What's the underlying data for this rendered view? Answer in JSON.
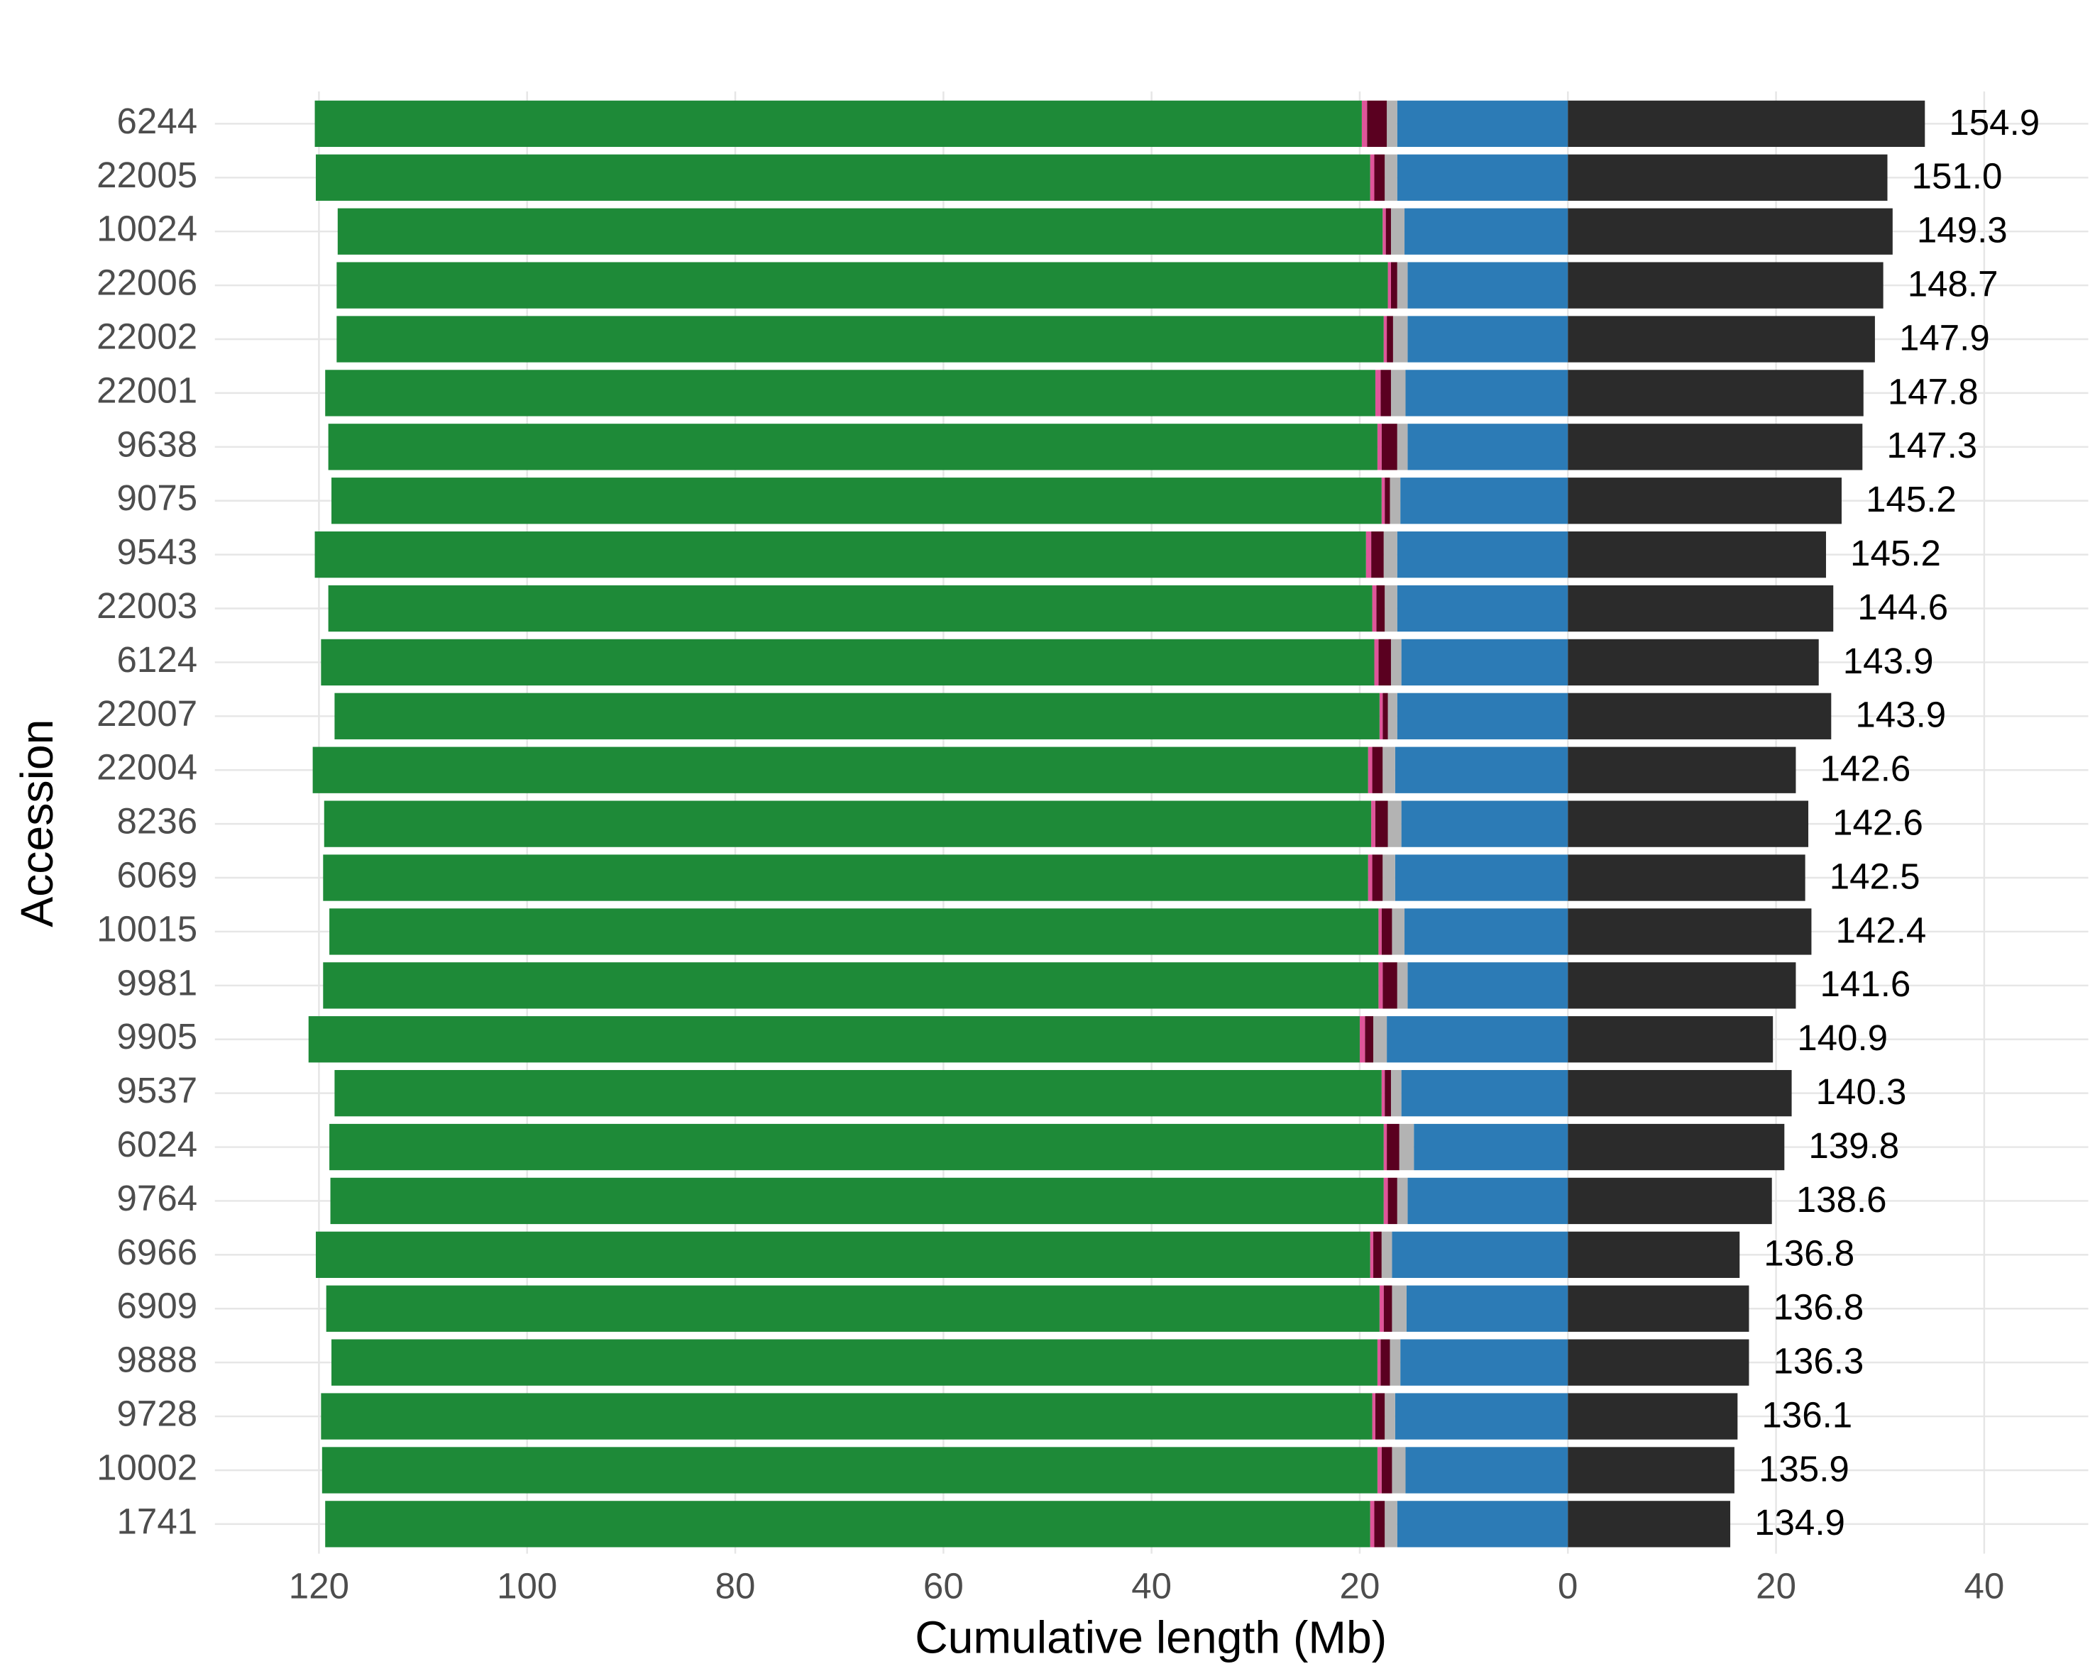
{
  "chart_data": {
    "type": "diverging-stacked-bar",
    "xlabel": "Cumulative length (Mb)",
    "ylabel": "Accession",
    "categories": [
      "6244",
      "22005",
      "10024",
      "22006",
      "22002",
      "22001",
      "9638",
      "9075",
      "9543",
      "22003",
      "6124",
      "22007",
      "22004",
      "8236",
      "6069",
      "10015",
      "9981",
      "9905",
      "9537",
      "6024",
      "9764",
      "6966",
      "6909",
      "9888",
      "9728",
      "10002",
      "1741"
    ],
    "xlim": [
      -130,
      50
    ],
    "xticks": [
      {
        "value": -120,
        "label": "120"
      },
      {
        "value": -100,
        "label": "100"
      },
      {
        "value": -80,
        "label": "80"
      },
      {
        "value": -60,
        "label": "60"
      },
      {
        "value": -40,
        "label": "40"
      },
      {
        "value": -20,
        "label": "20"
      },
      0,
      20,
      40
    ],
    "grid": true,
    "series": [
      {
        "color": "#2c7bb6",
        "values": [
          -16.4,
          -16.4,
          -15.7,
          -15.4,
          -15.4,
          -15.6,
          -15.4,
          -16.1,
          -16.4,
          -16.4,
          -16.0,
          -16.4,
          -16.6,
          -16.0,
          -16.6,
          -15.7,
          -15.4,
          -17.4,
          -16.0,
          -14.8,
          -15.4,
          -16.9,
          -15.5,
          -16.1,
          -16.6,
          -15.6,
          -16.4
        ]
      },
      {
        "color": "#b3b3b3",
        "values": [
          -1.0,
          -1.2,
          -1.3,
          -1.0,
          -1.4,
          -1.4,
          -1.0,
          -1.0,
          -1.3,
          -1.2,
          -1.0,
          -0.9,
          -1.2,
          -1.3,
          -1.2,
          -1.2,
          -1.0,
          -1.3,
          -1.0,
          -1.4,
          -1.0,
          -1.0,
          -1.4,
          -1.0,
          -1.0,
          -1.3,
          -1.2
        ]
      },
      {
        "color": "#5a0020",
        "values": [
          -1.9,
          -1.0,
          -0.5,
          -0.6,
          -0.6,
          -1.0,
          -1.5,
          -0.5,
          -1.2,
          -0.8,
          -1.2,
          -0.5,
          -1.0,
          -1.2,
          -1.0,
          -1.0,
          -1.4,
          -0.8,
          -0.6,
          -1.2,
          -0.9,
          -0.8,
          -0.8,
          -0.9,
          -0.9,
          -1.0,
          -1.0
        ]
      },
      {
        "color": "#e0559a",
        "values": [
          -0.5,
          -0.4,
          -0.3,
          -0.3,
          -0.3,
          -0.5,
          -0.4,
          -0.3,
          -0.5,
          -0.4,
          -0.4,
          -0.3,
          -0.4,
          -0.4,
          -0.4,
          -0.3,
          -0.4,
          -0.5,
          -0.3,
          -0.3,
          -0.4,
          -0.3,
          -0.4,
          -0.3,
          -0.3,
          -0.4,
          -0.4
        ]
      },
      {
        "color": "#1e8a38",
        "values": [
          -100.6,
          -101.3,
          -100.4,
          -101.0,
          -100.6,
          -100.9,
          -100.8,
          -100.9,
          -101.0,
          -100.3,
          -101.2,
          -100.4,
          -101.4,
          -100.6,
          -100.4,
          -100.8,
          -101.4,
          -101.0,
          -100.6,
          -101.3,
          -101.2,
          -101.3,
          -101.2,
          -100.5,
          -101.0,
          -101.4,
          -100.4
        ]
      },
      {
        "color": "#2b2b2b",
        "values": [
          34.3,
          30.7,
          31.2,
          30.3,
          29.5,
          28.4,
          28.3,
          26.3,
          24.8,
          25.5,
          24.1,
          25.3,
          21.9,
          23.1,
          22.8,
          23.4,
          21.9,
          19.7,
          21.5,
          20.8,
          19.6,
          16.5,
          17.4,
          17.4,
          16.3,
          16.0,
          15.6
        ]
      }
    ],
    "totals": {
      "values": [
        154.9,
        151,
        149.3,
        148.7,
        147.9,
        147.8,
        147.3,
        145.2,
        145.2,
        144.6,
        143.9,
        143.9,
        142.6,
        142.6,
        142.5,
        142.4,
        141.6,
        140.9,
        140.3,
        139.8,
        138.6,
        136.8,
        136.8,
        136.3,
        136.1,
        135.9,
        134.9
      ],
      "value_labels": [
        "154.9",
        "151.0",
        "149.3",
        "148.7",
        "147.9",
        "147.8",
        "147.3",
        "145.2",
        "145.2",
        "144.6",
        "143.9",
        "143.9",
        "142.6",
        "142.6",
        "142.5",
        "142.4",
        "141.6",
        "140.9",
        "140.3",
        "139.8",
        "138.6",
        "136.8",
        "136.8",
        "136.3",
        "136.1",
        "135.9",
        "134.9"
      ]
    }
  }
}
